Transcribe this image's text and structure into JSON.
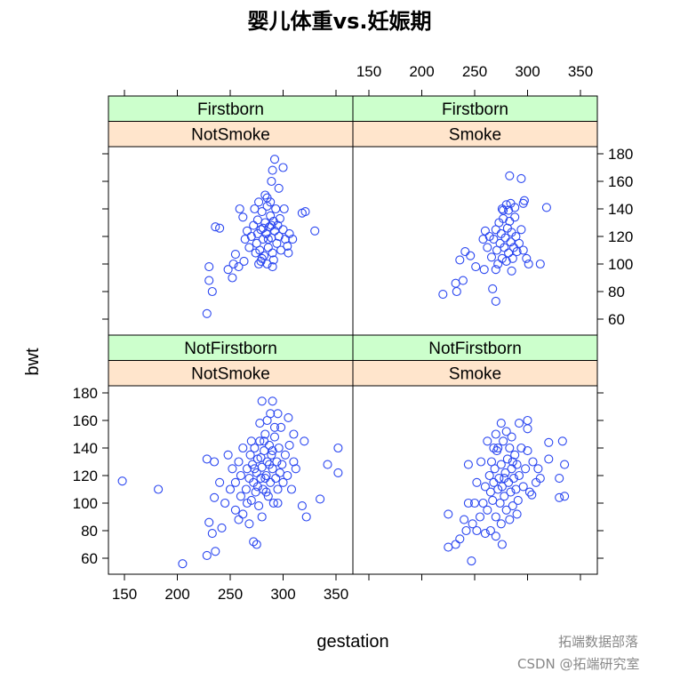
{
  "chart_data": {
    "type": "scatter",
    "title": "婴儿体重vs.妊娠期",
    "xlabel": "gestation",
    "ylabel": "bwt",
    "xlim": [
      135,
      366
    ],
    "ylim": [
      48,
      185
    ],
    "x_ticks": [
      150,
      200,
      250,
      300,
      350
    ],
    "y_ticks": [
      60,
      80,
      100,
      120,
      140,
      160,
      180
    ],
    "marker": "open-circle",
    "marker_color": "#2a46f0",
    "strip_colors": {
      "parity": "#ccffcc",
      "smoke": "#ffe5cc"
    },
    "panels": [
      {
        "parity": "Firstborn",
        "smoke": "NotSmoke",
        "points": [
          [
            228,
            64
          ],
          [
            230,
            88
          ],
          [
            230,
            98
          ],
          [
            233,
            80
          ],
          [
            236,
            127
          ],
          [
            240,
            126
          ],
          [
            248,
            96
          ],
          [
            252,
            90
          ],
          [
            253,
            100
          ],
          [
            258,
            98
          ],
          [
            263,
            102
          ],
          [
            255,
            107
          ],
          [
            277,
            100
          ],
          [
            290,
            98
          ],
          [
            301,
            140
          ],
          [
            309,
            118
          ],
          [
            305,
            108
          ],
          [
            318,
            137
          ],
          [
            321,
            138
          ],
          [
            330,
            124
          ],
          [
            292,
            176
          ],
          [
            300,
            170
          ],
          [
            290,
            168
          ],
          [
            289,
            160
          ],
          [
            296,
            155
          ],
          [
            285,
            148
          ],
          [
            259,
            140
          ],
          [
            280,
            104
          ],
          [
            270,
            120
          ],
          [
            272,
            128
          ],
          [
            275,
            115
          ],
          [
            276,
            132
          ],
          [
            278,
            110
          ],
          [
            279,
            125
          ],
          [
            280,
            138
          ],
          [
            281,
            118
          ],
          [
            282,
            106
          ],
          [
            283,
            130
          ],
          [
            284,
            122
          ],
          [
            285,
            142
          ],
          [
            286,
            112
          ],
          [
            287,
            127
          ],
          [
            288,
            135
          ],
          [
            289,
            119
          ],
          [
            290,
            108
          ],
          [
            291,
            131
          ],
          [
            292,
            124
          ],
          [
            293,
            140
          ],
          [
            294,
            115
          ],
          [
            295,
            128
          ],
          [
            296,
            120
          ],
          [
            297,
            133
          ],
          [
            298,
            110
          ],
          [
            300,
            125
          ],
          [
            302,
            118
          ],
          [
            304,
            113
          ],
          [
            306,
            122
          ],
          [
            268,
            112
          ],
          [
            266,
            124
          ],
          [
            264,
            118
          ],
          [
            273,
            140
          ],
          [
            277,
            145
          ],
          [
            283,
            150
          ],
          [
            288,
            145
          ],
          [
            279,
            102
          ],
          [
            285,
            100
          ],
          [
            291,
            103
          ],
          [
            274,
            108
          ],
          [
            262,
            134
          ],
          [
            286,
            118
          ],
          [
            281,
            126
          ],
          [
            276,
            122
          ],
          [
            289,
            128
          ]
        ]
      },
      {
        "parity": "Firstborn",
        "smoke": "Smoke",
        "points": [
          [
            220,
            78
          ],
          [
            232,
            86
          ],
          [
            233,
            80
          ],
          [
            239,
            88
          ],
          [
            236,
            103
          ],
          [
            241,
            109
          ],
          [
            246,
            106
          ],
          [
            251,
            98
          ],
          [
            259,
            96
          ],
          [
            270,
            73
          ],
          [
            267,
            82
          ],
          [
            285,
            95
          ],
          [
            301,
            100
          ],
          [
            283,
            164
          ],
          [
            294,
            162
          ],
          [
            297,
            146
          ],
          [
            296,
            144
          ],
          [
            288,
            141
          ],
          [
            282,
            139
          ],
          [
            277,
            139
          ],
          [
            318,
            141
          ],
          [
            312,
            100
          ],
          [
            262,
            112
          ],
          [
            264,
            120
          ],
          [
            266,
            105
          ],
          [
            268,
            118
          ],
          [
            270,
            125
          ],
          [
            271,
            110
          ],
          [
            272,
            100
          ],
          [
            273,
            130
          ],
          [
            274,
            115
          ],
          [
            275,
            122
          ],
          [
            276,
            104
          ],
          [
            277,
            133
          ],
          [
            278,
            112
          ],
          [
            279,
            119
          ],
          [
            280,
            102
          ],
          [
            281,
            126
          ],
          [
            282,
            108
          ],
          [
            283,
            131
          ],
          [
            284,
            116
          ],
          [
            285,
            123
          ],
          [
            286,
            104
          ],
          [
            287,
            112
          ],
          [
            288,
            134
          ],
          [
            289,
            120
          ],
          [
            290,
            109
          ],
          [
            292,
            115
          ],
          [
            294,
            125
          ],
          [
            296,
            110
          ],
          [
            299,
            104
          ],
          [
            258,
            118
          ],
          [
            260,
            124
          ],
          [
            276,
            140
          ],
          [
            280,
            143
          ],
          [
            284,
            144
          ],
          [
            270,
            96
          ]
        ]
      },
      {
        "parity": "NotFirstborn",
        "smoke": "NotSmoke",
        "points": [
          [
            148,
            116
          ],
          [
            182,
            110
          ],
          [
            205,
            56
          ],
          [
            228,
            62
          ],
          [
            230,
            86
          ],
          [
            233,
            78
          ],
          [
            235,
            104
          ],
          [
            236,
            65
          ],
          [
            242,
            82
          ],
          [
            228,
            132
          ],
          [
            235,
            130
          ],
          [
            260,
            120
          ],
          [
            272,
            72
          ],
          [
            275,
            70
          ],
          [
            318,
            98
          ],
          [
            322,
            90
          ],
          [
            335,
            103
          ],
          [
            342,
            128
          ],
          [
            352,
            140
          ],
          [
            352,
            122
          ],
          [
            310,
            150
          ],
          [
            320,
            145
          ],
          [
            280,
            174
          ],
          [
            290,
            174
          ],
          [
            295,
            165
          ],
          [
            305,
            162
          ],
          [
            265,
            110
          ],
          [
            266,
            125
          ],
          [
            268,
            118
          ],
          [
            269,
            135
          ],
          [
            270,
            102
          ],
          [
            271,
            128
          ],
          [
            272,
            115
          ],
          [
            273,
            140
          ],
          [
            274,
            108
          ],
          [
            275,
            122
          ],
          [
            276,
            132
          ],
          [
            277,
            98
          ],
          [
            278,
            145
          ],
          [
            279,
            118
          ],
          [
            280,
            126
          ],
          [
            281,
            110
          ],
          [
            282,
            138
          ],
          [
            283,
            150
          ],
          [
            284,
            120
          ],
          [
            285,
            130
          ],
          [
            286,
            105
          ],
          [
            287,
            142
          ],
          [
            288,
            115
          ],
          [
            289,
            135
          ],
          [
            290,
            125
          ],
          [
            291,
            100
          ],
          [
            292,
            148
          ],
          [
            293,
            118
          ],
          [
            294,
            130
          ],
          [
            295,
            110
          ],
          [
            296,
            140
          ],
          [
            297,
            122
          ],
          [
            298,
            155
          ],
          [
            299,
            128
          ],
          [
            300,
            115
          ],
          [
            302,
            135
          ],
          [
            304,
            120
          ],
          [
            306,
            142
          ],
          [
            308,
            110
          ],
          [
            310,
            130
          ],
          [
            312,
            125
          ],
          [
            255,
            115
          ],
          [
            258,
            130
          ],
          [
            260,
            105
          ],
          [
            262,
            140
          ],
          [
            250,
            110
          ],
          [
            252,
            125
          ],
          [
            245,
            100
          ],
          [
            248,
            135
          ],
          [
            255,
            95
          ],
          [
            258,
            88
          ],
          [
            262,
            92
          ],
          [
            268,
            85
          ],
          [
            280,
            90
          ],
          [
            285,
            160
          ],
          [
            288,
            165
          ],
          [
            278,
            158
          ],
          [
            292,
            155
          ],
          [
            276,
            112
          ],
          [
            283,
            118
          ],
          [
            287,
            128
          ],
          [
            279,
            133
          ],
          [
            284,
            108
          ],
          [
            290,
            138
          ],
          [
            273,
            125
          ],
          [
            282,
            145
          ],
          [
            295,
            100
          ],
          [
            270,
            145
          ],
          [
            266,
            100
          ],
          [
            240,
            115
          ]
        ]
      },
      {
        "parity": "NotFirstborn",
        "smoke": "Smoke",
        "points": [
          [
            225,
            68
          ],
          [
            225,
            92
          ],
          [
            232,
            70
          ],
          [
            236,
            74
          ],
          [
            240,
            88
          ],
          [
            242,
            80
          ],
          [
            244,
            100
          ],
          [
            247,
            58
          ],
          [
            252,
            80
          ],
          [
            244,
            128
          ],
          [
            268,
            140
          ],
          [
            275,
            158
          ],
          [
            292,
            158
          ],
          [
            300,
            160
          ],
          [
            300,
            154
          ],
          [
            320,
            144
          ],
          [
            320,
            132
          ],
          [
            312,
            118
          ],
          [
            335,
            105
          ],
          [
            330,
            118
          ],
          [
            330,
            104
          ],
          [
            333,
            145
          ],
          [
            335,
            128
          ],
          [
            302,
            108
          ],
          [
            304,
            106
          ],
          [
            260,
            78
          ],
          [
            270,
            76
          ],
          [
            276,
            70
          ],
          [
            258,
            100
          ],
          [
            260,
            112
          ],
          [
            262,
            95
          ],
          [
            264,
            120
          ],
          [
            265,
            108
          ],
          [
            266,
            130
          ],
          [
            267,
            102
          ],
          [
            268,
            115
          ],
          [
            269,
            125
          ],
          [
            270,
            90
          ],
          [
            271,
            138
          ],
          [
            272,
            110
          ],
          [
            273,
            118
          ],
          [
            274,
            100
          ],
          [
            275,
            128
          ],
          [
            276,
            112
          ],
          [
            277,
            145
          ],
          [
            278,
            105
          ],
          [
            279,
            122
          ],
          [
            280,
            95
          ],
          [
            281,
            132
          ],
          [
            282,
            115
          ],
          [
            283,
            140
          ],
          [
            284,
            108
          ],
          [
            285,
            125
          ],
          [
            286,
            98
          ],
          [
            287,
            118
          ],
          [
            288,
            135
          ],
          [
            289,
            110
          ],
          [
            290,
            128
          ],
          [
            291,
            102
          ],
          [
            292,
            120
          ],
          [
            294,
            140
          ],
          [
            296,
            112
          ],
          [
            298,
            125
          ],
          [
            300,
            138
          ],
          [
            305,
            130
          ],
          [
            255,
            90
          ],
          [
            250,
            100
          ],
          [
            252,
            115
          ],
          [
            248,
            85
          ],
          [
            256,
            130
          ],
          [
            262,
            145
          ],
          [
            270,
            150
          ],
          [
            280,
            152
          ],
          [
            285,
            148
          ],
          [
            275,
            85
          ],
          [
            283,
            88
          ],
          [
            290,
            92
          ],
          [
            310,
            125
          ],
          [
            308,
            115
          ],
          [
            265,
            80
          ],
          [
            272,
            140
          ],
          [
            278,
            118
          ],
          [
            286,
            130
          ]
        ]
      }
    ]
  },
  "watermark": {
    "line1": "拓端数据部落",
    "line2": "CSDN @拓端研究室"
  }
}
